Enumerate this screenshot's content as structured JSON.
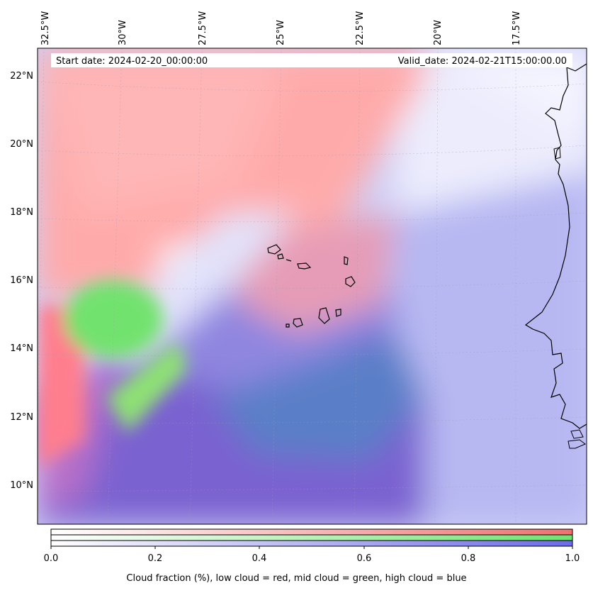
{
  "header": {
    "start_date": "Start date: 2024-02-20_00:00:00",
    "valid_date": "Valid_date: 2024-02-21T15:00:00.00"
  },
  "axes": {
    "longitude_labels": [
      "32.5°W",
      "30°W",
      "27.5°W",
      "25°W",
      "22.5°W",
      "20°W",
      "17.5°W"
    ],
    "latitude_labels": [
      "22°N",
      "20°N",
      "18°N",
      "16°N",
      "14°N",
      "12°N",
      "10°N"
    ]
  },
  "colorbar": {
    "ticks": [
      "0.0",
      "0.2",
      "0.4",
      "0.6",
      "0.8",
      "1.0"
    ],
    "bar_colors": [
      "#f07070",
      "#6fe46f",
      "#6c6ce8"
    ],
    "caption": "Cloud fraction (%), low cloud = red, mid cloud = green, high cloud = blue"
  },
  "layers": {
    "low_cloud_color": "#ff8a8a",
    "mid_cloud_color": "#7be57b",
    "high_cloud_color": "#8a8af0"
  }
}
